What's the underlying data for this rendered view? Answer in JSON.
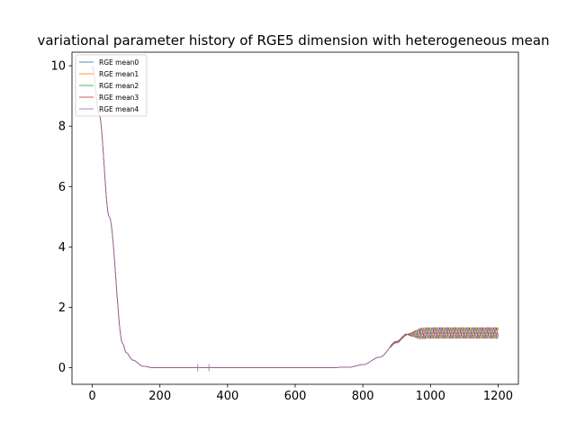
{
  "chart_data": {
    "type": "line",
    "title": "variational parameter history of RGE5 dimension with heterogeneous mean",
    "xlabel": "",
    "ylabel": "",
    "xlim": [
      -60,
      1260
    ],
    "ylim": [
      -0.55,
      10.45
    ],
    "xticks": [
      0,
      200,
      400,
      600,
      800,
      1000,
      1200
    ],
    "yticks": [
      0,
      2,
      4,
      6,
      8,
      10
    ],
    "grid": false,
    "legend_position": "top-left",
    "series": [
      {
        "name": "RGE mean0",
        "color": "#1f77b4",
        "phase": 0.0
      },
      {
        "name": "RGE mean1",
        "color": "#ff7f0e",
        "phase": 1.3
      },
      {
        "name": "RGE mean2",
        "color": "#2ca02c",
        "phase": 2.6
      },
      {
        "name": "RGE mean3",
        "color": "#d62728",
        "phase": 3.9
      },
      {
        "name": "RGE mean4",
        "color": "#9467bd",
        "phase": 5.2
      }
    ],
    "shape_keypoints": {
      "note_x": [
        0,
        20,
        50,
        90,
        100,
        120,
        150,
        180,
        700,
        760,
        800,
        850,
        900,
        930,
        1000,
        1200
      ],
      "y": [
        10.0,
        8.4,
        5.0,
        0.8,
        0.5,
        0.25,
        0.05,
        0.0,
        0.0,
        0.02,
        0.1,
        0.35,
        0.85,
        1.1,
        1.15,
        1.15
      ]
    },
    "oscillation": {
      "start_x": 930,
      "end_x": 1200,
      "amplitude": 0.18,
      "period": 20
    }
  }
}
